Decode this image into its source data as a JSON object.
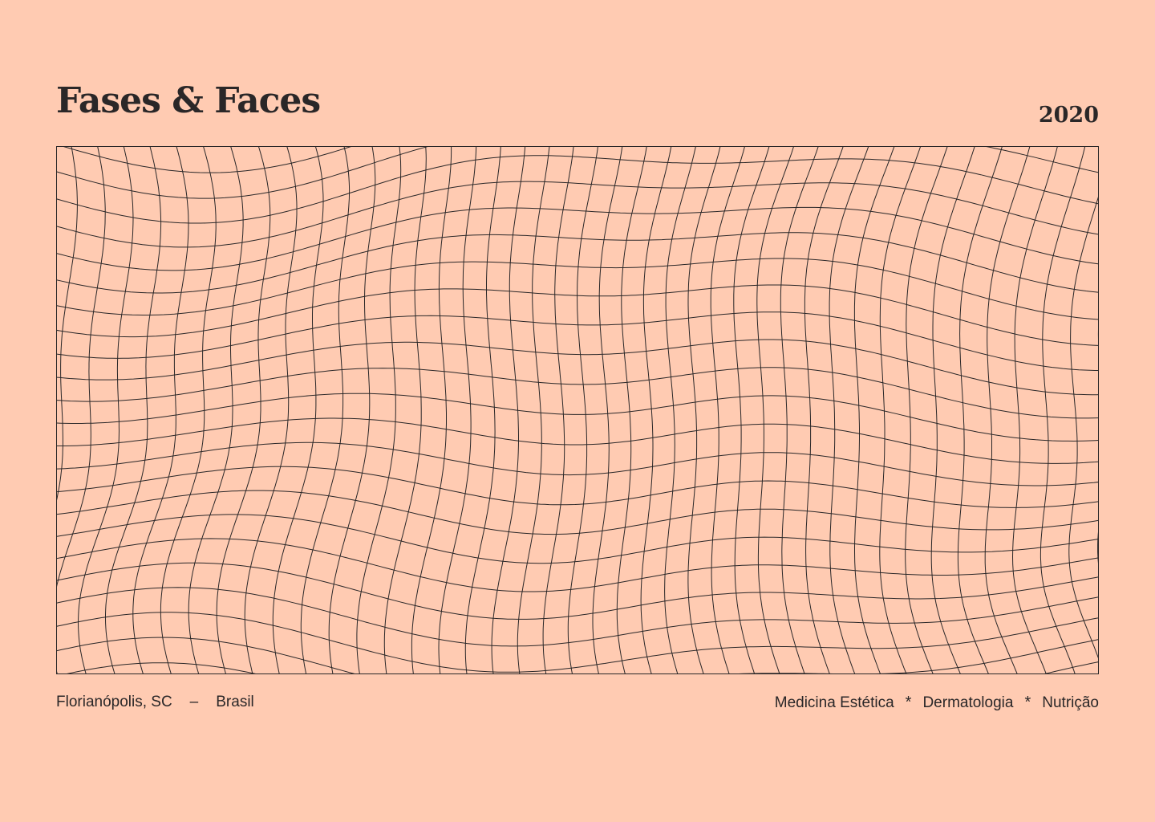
{
  "brand": {
    "title": "Fases & Faces",
    "year": "2020"
  },
  "location": {
    "city": "Florianópolis, SC",
    "separator": "–",
    "country": "Brasil"
  },
  "services": {
    "items": [
      "Medicina Estética",
      "Dermatologia",
      "Nutrição"
    ],
    "separator": "*"
  },
  "colors": {
    "background": "#FFCBB2",
    "ink": "#2A2728"
  },
  "artwork": {
    "name": "warped-grid-pattern"
  }
}
